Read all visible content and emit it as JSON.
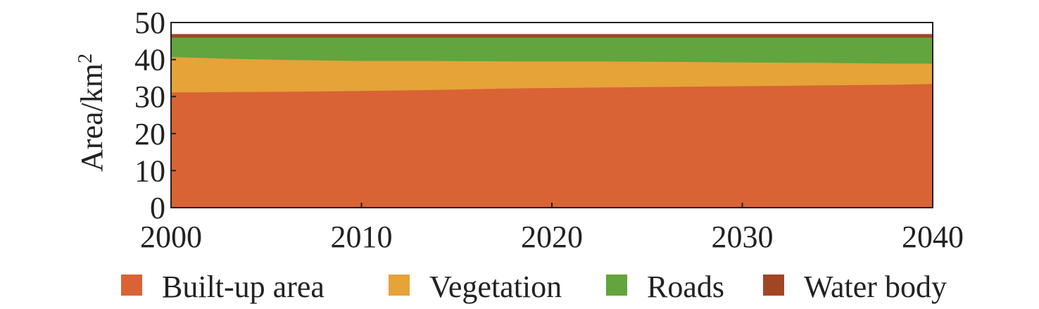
{
  "chart_data": {
    "type": "area",
    "stacked": true,
    "x": [
      2000,
      2003,
      2006,
      2010,
      2014,
      2018,
      2020,
      2022,
      2026,
      2030,
      2034,
      2038,
      2040
    ],
    "series": [
      {
        "name": "Built-up area",
        "color": "#D96334",
        "values": [
          31.2,
          31.3,
          31.4,
          31.6,
          31.9,
          32.3,
          32.4,
          32.5,
          32.7,
          32.9,
          33.1,
          33.3,
          33.5
        ]
      },
      {
        "name": "Vegetation",
        "color": "#E5A338",
        "values": [
          9.6,
          9.0,
          8.6,
          8.1,
          7.8,
          7.3,
          7.2,
          7.1,
          6.8,
          6.4,
          6.1,
          5.7,
          5.5
        ]
      },
      {
        "name": "Roads",
        "color": "#62A43E",
        "values": [
          5.2,
          5.7,
          6.0,
          6.3,
          6.3,
          6.4,
          6.4,
          6.4,
          6.5,
          6.7,
          6.8,
          7.0,
          7.0
        ]
      },
      {
        "name": "Water body",
        "color": "#A14625",
        "values": [
          0.8,
          0.8,
          0.8,
          0.8,
          0.8,
          0.8,
          0.8,
          0.8,
          0.8,
          0.8,
          0.8,
          0.8,
          0.8
        ]
      }
    ],
    "xlim": [
      2000,
      2040
    ],
    "ylim": [
      0,
      50
    ],
    "xticks": [
      "2000",
      "2010",
      "2020",
      "2030",
      "2040"
    ],
    "yticks": [
      "0",
      "10",
      "20",
      "30",
      "40",
      "50"
    ],
    "ylabel": "Area/km",
    "ylabel_superscript": "2",
    "xlabel": "",
    "title": "",
    "grid": false,
    "legend_position": "bottom"
  }
}
